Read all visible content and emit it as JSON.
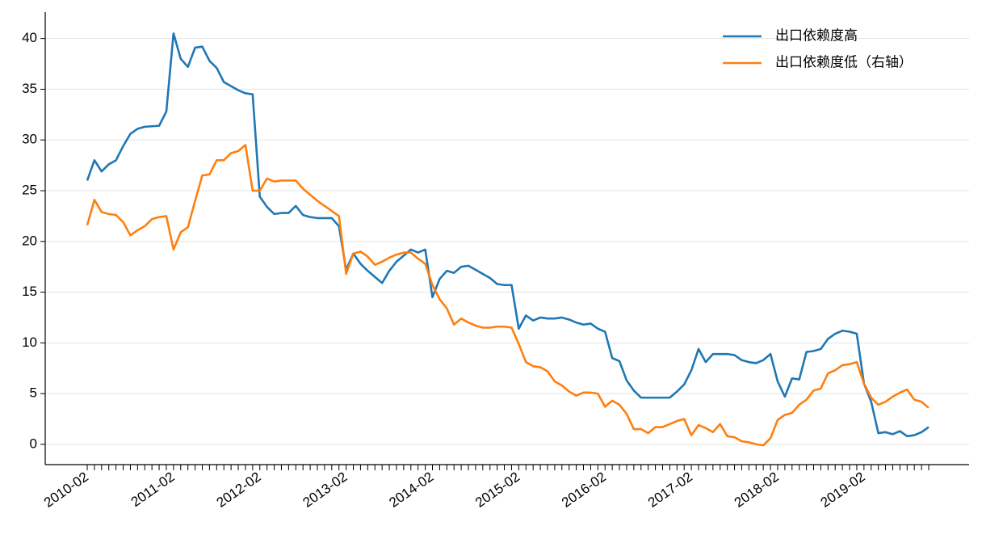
{
  "chart_data": {
    "type": "line",
    "categories": [
      "2010-02",
      null,
      null,
      null,
      null,
      null,
      null,
      null,
      null,
      null,
      null,
      null,
      "2011-02",
      null,
      null,
      null,
      null,
      null,
      null,
      null,
      null,
      null,
      null,
      null,
      "2012-02",
      null,
      null,
      null,
      null,
      null,
      null,
      null,
      null,
      null,
      null,
      null,
      "2013-02",
      null,
      null,
      null,
      null,
      null,
      null,
      null,
      null,
      null,
      null,
      null,
      "2014-02",
      null,
      null,
      null,
      null,
      null,
      null,
      null,
      null,
      null,
      null,
      null,
      "2015-02",
      null,
      null,
      null,
      null,
      null,
      null,
      null,
      null,
      null,
      null,
      null,
      "2016-02",
      null,
      null,
      null,
      null,
      null,
      null,
      null,
      null,
      null,
      null,
      null,
      "2017-02",
      null,
      null,
      null,
      null,
      null,
      null,
      null,
      null,
      null,
      null,
      null,
      "2018-02",
      null,
      null,
      null,
      null,
      null,
      null,
      null,
      null,
      null,
      null,
      null,
      "2019-02",
      null,
      null,
      null,
      null,
      null,
      null,
      null,
      null,
      null
    ],
    "series": [
      {
        "name": "出口依赖度高",
        "color": "#1f77b4",
        "values": [
          26.0,
          28.0,
          26.9,
          27.6,
          28.0,
          29.4,
          30.6,
          31.1,
          31.3,
          31.35,
          31.4,
          32.8,
          40.5,
          38.0,
          37.2,
          39.1,
          39.2,
          37.8,
          37.1,
          35.7,
          35.3,
          34.9,
          34.6,
          34.5,
          24.4,
          23.4,
          22.7,
          22.8,
          22.8,
          23.5,
          22.6,
          22.4,
          22.3,
          22.3,
          22.3,
          21.5,
          17.2,
          18.8,
          17.8,
          17.1,
          16.5,
          15.9,
          17.1,
          18.0,
          18.6,
          19.2,
          18.9,
          19.2,
          14.5,
          16.3,
          17.1,
          16.9,
          17.5,
          17.6,
          17.2,
          16.8,
          16.4,
          15.8,
          15.7,
          15.7,
          11.4,
          12.7,
          12.2,
          12.5,
          12.4,
          12.4,
          12.5,
          12.3,
          12.0,
          11.8,
          11.9,
          11.4,
          11.1,
          8.5,
          8.2,
          6.3,
          5.3,
          4.6,
          4.6,
          4.6,
          4.6,
          4.6,
          5.2,
          5.9,
          7.3,
          9.4,
          8.1,
          8.9,
          8.9,
          8.9,
          8.8,
          8.3,
          8.1,
          8.0,
          8.3,
          8.9,
          6.2,
          4.7,
          6.5,
          6.4,
          9.1,
          9.2,
          9.4,
          10.4,
          10.9,
          11.2,
          11.1,
          10.9,
          6.0,
          4.2,
          1.1,
          1.2,
          1.0,
          1.3,
          0.8,
          0.9,
          1.2,
          1.7
        ]
      },
      {
        "name": "出口依赖度低（右轴）",
        "color": "#ff7f0e",
        "values": [
          21.6,
          24.1,
          22.9,
          22.7,
          22.6,
          21.9,
          20.6,
          21.1,
          21.5,
          22.2,
          22.4,
          22.5,
          19.2,
          20.9,
          21.4,
          24.0,
          26.5,
          26.6,
          28.0,
          28.0,
          28.7,
          28.9,
          29.5,
          25.0,
          25.0,
          26.2,
          25.9,
          26.0,
          26.0,
          26.0,
          25.2,
          24.6,
          24.0,
          23.5,
          23.0,
          22.5,
          16.8,
          18.8,
          19.0,
          18.5,
          17.7,
          18.0,
          18.4,
          18.7,
          18.9,
          18.9,
          18.3,
          17.8,
          15.7,
          14.3,
          13.4,
          11.8,
          12.4,
          12.0,
          11.7,
          11.5,
          11.5,
          11.6,
          11.6,
          11.5,
          9.9,
          8.1,
          7.7,
          7.6,
          7.2,
          6.2,
          5.8,
          5.2,
          4.8,
          5.1,
          5.1,
          5.0,
          3.7,
          4.3,
          3.9,
          3.0,
          1.5,
          1.5,
          1.1,
          1.7,
          1.7,
          2.0,
          2.3,
          2.5,
          0.9,
          1.9,
          1.6,
          1.2,
          2.0,
          0.8,
          0.7,
          0.3,
          0.2,
          0.0,
          -0.1,
          0.6,
          2.4,
          2.9,
          3.1,
          3.9,
          4.4,
          5.3,
          5.5,
          7.0,
          7.3,
          7.8,
          7.9,
          8.1,
          6.0,
          4.6,
          3.9,
          4.2,
          4.7,
          5.1,
          5.4,
          4.4,
          4.2,
          3.6
        ]
      }
    ],
    "ylim": [
      -2,
      42.6
    ],
    "yticks": [
      0,
      5,
      10,
      15,
      20,
      25,
      30,
      35,
      40
    ],
    "grid": true,
    "legend": "upper right"
  }
}
